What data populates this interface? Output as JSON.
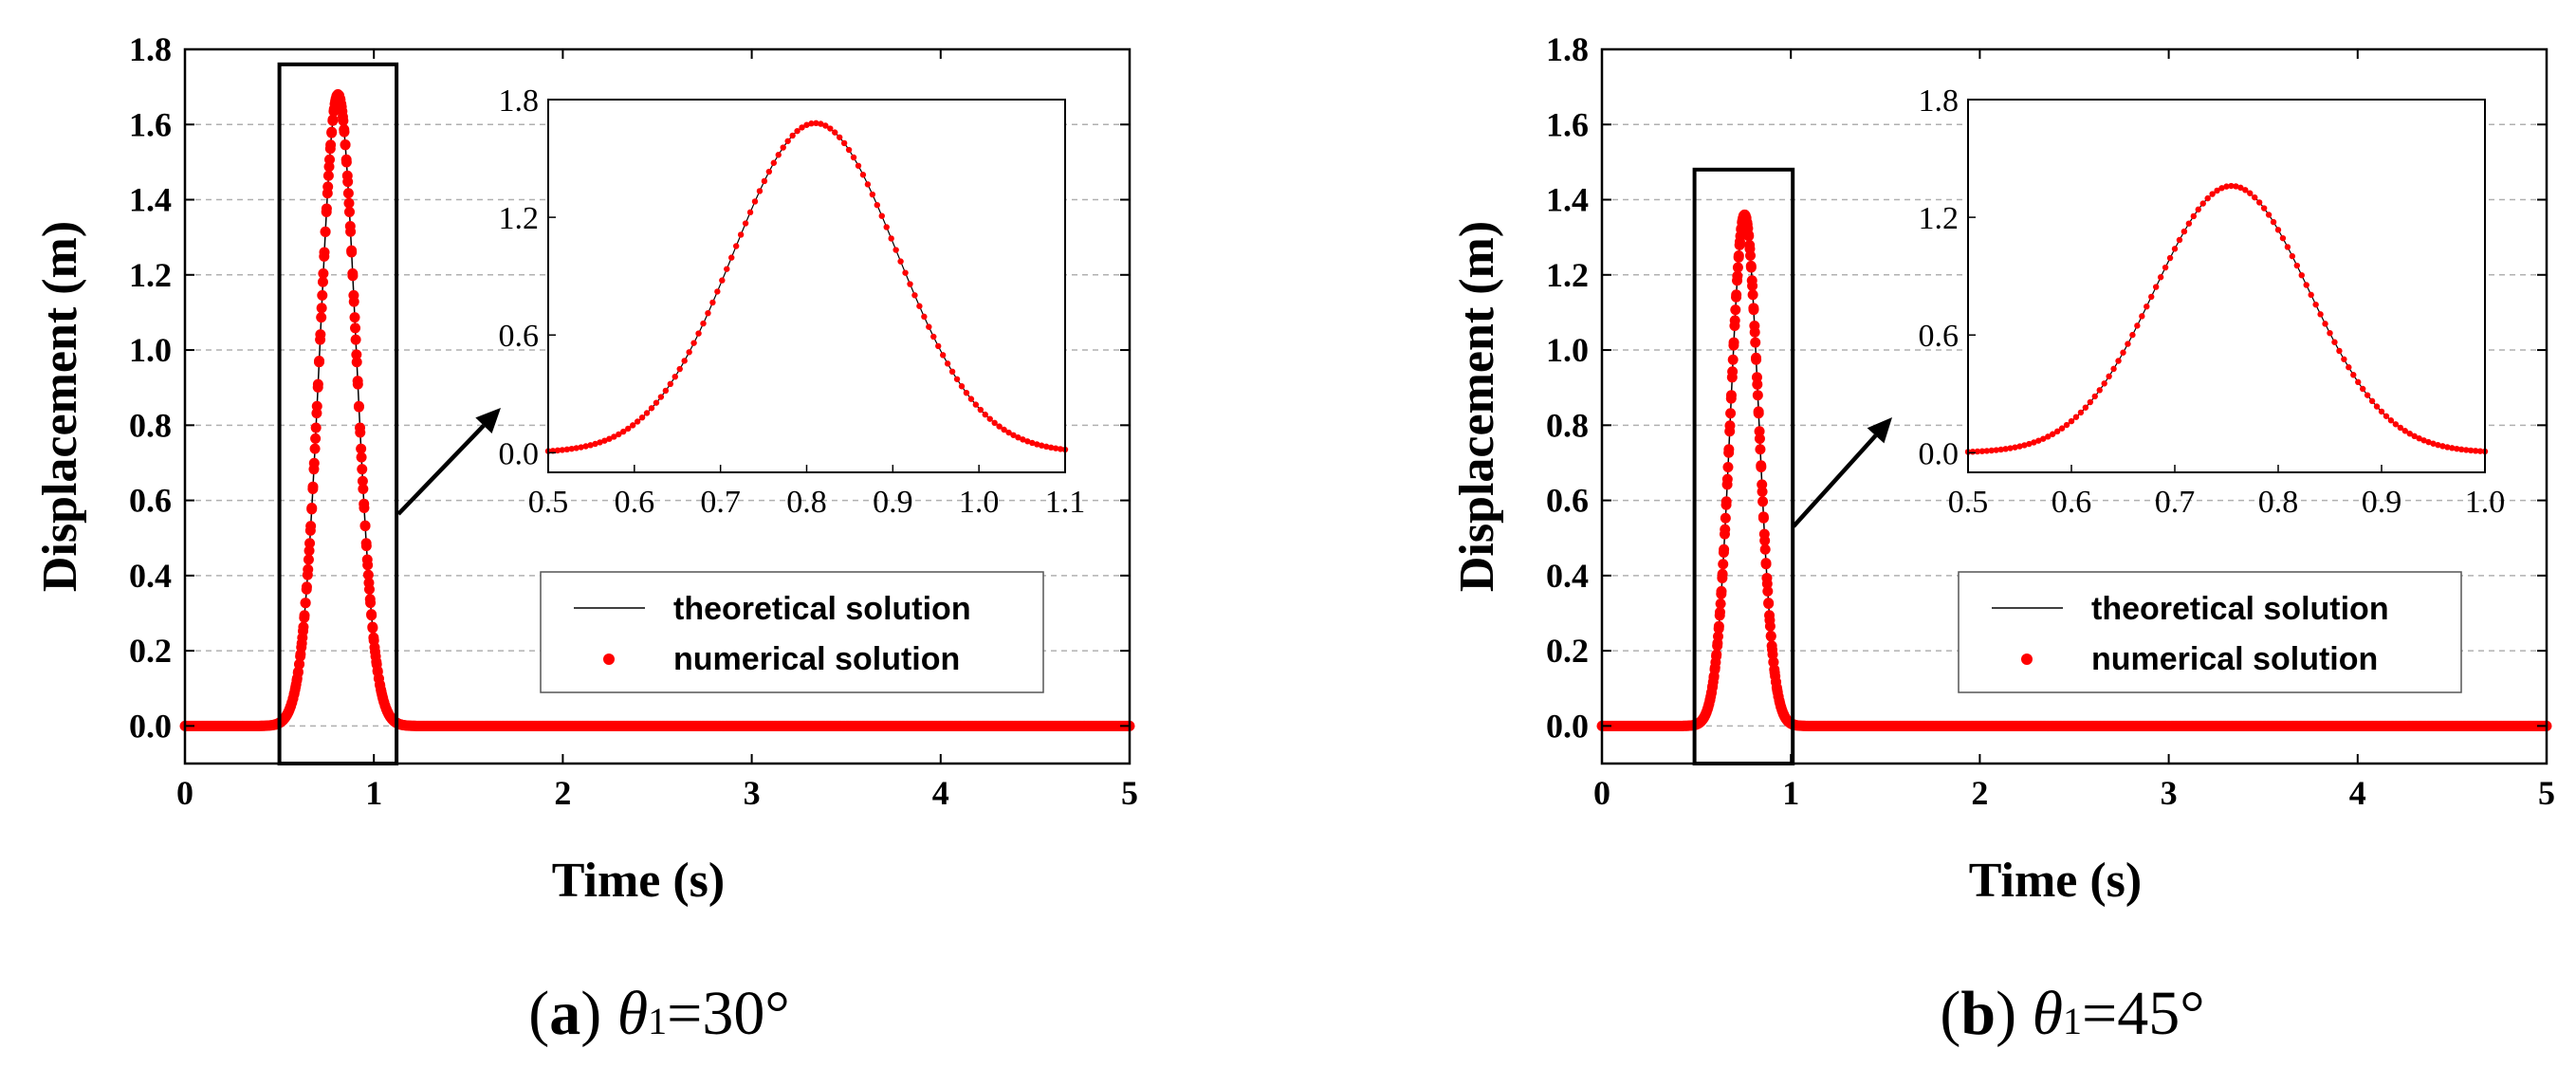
{
  "chart_data": [
    {
      "type": "line",
      "panel": "a",
      "caption": {
        "label": "a",
        "open": "(",
        "close": ")",
        "theta": "θ",
        "sub": "1",
        "eq": "=",
        "value": "30°"
      },
      "xlabel": "Time (s)",
      "ylabel": "Displacement (m)",
      "xlim": [
        0,
        5
      ],
      "ylim": [
        -0.1,
        1.8
      ],
      "xticks": [
        "0",
        "1",
        "2",
        "3",
        "4",
        "5"
      ],
      "yticks": [
        "0.0",
        "0.2",
        "0.4",
        "0.6",
        "0.8",
        "1.0",
        "1.2",
        "1.4",
        "1.6",
        "1.8"
      ],
      "grid": "horizontal dashed",
      "legend": {
        "position": "center-right",
        "entries": [
          "theoretical solution",
          "numerical solution"
        ]
      },
      "series": [
        {
          "name": "theoretical solution",
          "style": "thin black line",
          "pulse": {
            "peak_time": 0.81,
            "peak_value": 1.68,
            "width_sigma": 0.095
          }
        },
        {
          "name": "numerical solution",
          "style": "red dots",
          "pulse": {
            "peak_time": 0.81,
            "peak_value": 1.68,
            "width_sigma": 0.095
          }
        }
      ],
      "highlight_box": {
        "x": [
          0.5,
          1.12
        ],
        "y": [
          -0.1,
          1.76
        ]
      },
      "inset": {
        "xlim": [
          0.5,
          1.1
        ],
        "ylim": [
          -0.1,
          1.8
        ],
        "xticks": [
          "0.5",
          "0.6",
          "0.7",
          "0.8",
          "0.9",
          "1.0",
          "1.1"
        ],
        "yticks": [
          "0.0",
          "0.6",
          "1.2",
          "1.8"
        ]
      }
    },
    {
      "type": "line",
      "panel": "b",
      "caption": {
        "label": "b",
        "open": "(",
        "close": ")",
        "theta": "θ",
        "sub": "1",
        "eq": "=",
        "value": "45°"
      },
      "xlabel": "Time (s)",
      "ylabel": "Displacement (m)",
      "xlim": [
        0,
        5
      ],
      "ylim": [
        -0.1,
        1.8
      ],
      "xticks": [
        "0",
        "1",
        "2",
        "3",
        "4",
        "5"
      ],
      "yticks": [
        "0.0",
        "0.2",
        "0.4",
        "0.6",
        "0.8",
        "1.0",
        "1.2",
        "1.4",
        "1.6",
        "1.8"
      ],
      "grid": "horizontal dashed",
      "legend": {
        "position": "center-right",
        "entries": [
          "theoretical solution",
          "numerical solution"
        ]
      },
      "series": [
        {
          "name": "theoretical solution",
          "style": "thin black line",
          "pulse": {
            "peak_time": 0.755,
            "peak_value": 1.36,
            "width_sigma": 0.075
          }
        },
        {
          "name": "numerical solution",
          "style": "red dots",
          "pulse": {
            "peak_time": 0.755,
            "peak_value": 1.36,
            "width_sigma": 0.075
          }
        }
      ],
      "highlight_box": {
        "x": [
          0.49,
          1.01
        ],
        "y": [
          -0.1,
          1.48
        ]
      },
      "inset": {
        "xlim": [
          0.5,
          1.0
        ],
        "ylim": [
          -0.1,
          1.8
        ],
        "xticks": [
          "0.5",
          "0.6",
          "0.7",
          "0.8",
          "0.9",
          "1.0"
        ],
        "yticks": [
          "0.0",
          "0.6",
          "1.2",
          "1.8"
        ]
      }
    }
  ],
  "colors": {
    "numerical": "#ff0000",
    "theoretical": "#000000",
    "grid": "#b0b0b0",
    "axis": "#000000"
  }
}
